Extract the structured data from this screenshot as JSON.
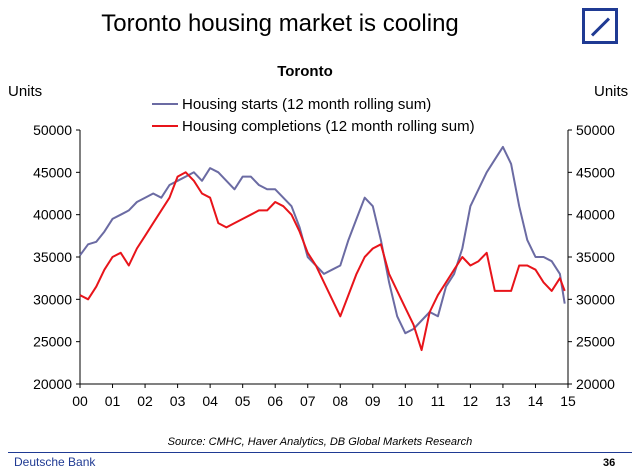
{
  "slide": {
    "title": "Toronto housing market is cooling",
    "source": "Source: CMHC, Haver Analytics, DB Global Markets Research",
    "footer_brand": "Deutsche Bank",
    "page_number": "36",
    "logo_icon": "deutsche-bank-logo",
    "brand_color": "#1f3a93"
  },
  "chart_data": {
    "type": "line",
    "title": "Toronto",
    "ylabel_left": "Units",
    "ylabel_right": "Units",
    "ylim": [
      20000,
      50000
    ],
    "yticks": [
      20000,
      25000,
      30000,
      35000,
      40000,
      45000,
      50000
    ],
    "xlim": [
      2000,
      2015
    ],
    "xtick_labels": [
      "00",
      "01",
      "02",
      "03",
      "04",
      "05",
      "06",
      "07",
      "08",
      "09",
      "10",
      "11",
      "12",
      "13",
      "14",
      "15"
    ],
    "legend_position": "top-center",
    "grid": false,
    "series": [
      {
        "name": "Housing starts (12 month rolling sum)",
        "color": "#6b6ba3",
        "x": [
          2000.0,
          2000.25,
          2000.5,
          2000.75,
          2001.0,
          2001.25,
          2001.5,
          2001.75,
          2002.0,
          2002.25,
          2002.5,
          2002.75,
          2003.0,
          2003.25,
          2003.5,
          2003.75,
          2004.0,
          2004.25,
          2004.5,
          2004.75,
          2005.0,
          2005.25,
          2005.5,
          2005.75,
          2006.0,
          2006.25,
          2006.5,
          2006.75,
          2007.0,
          2007.25,
          2007.5,
          2007.75,
          2008.0,
          2008.25,
          2008.5,
          2008.75,
          2009.0,
          2009.25,
          2009.5,
          2009.75,
          2010.0,
          2010.25,
          2010.5,
          2010.75,
          2011.0,
          2011.25,
          2011.5,
          2011.75,
          2012.0,
          2012.25,
          2012.5,
          2012.75,
          2013.0,
          2013.25,
          2013.5,
          2013.75,
          2014.0,
          2014.25,
          2014.5,
          2014.75,
          2014.9
        ],
        "values": [
          35200,
          36500,
          36800,
          38000,
          39500,
          40000,
          40500,
          41500,
          42000,
          42500,
          42000,
          43500,
          44000,
          44500,
          45000,
          44000,
          45500,
          45000,
          44000,
          43000,
          44500,
          44500,
          43500,
          43000,
          43000,
          42000,
          41000,
          38500,
          35000,
          34000,
          33000,
          33500,
          34000,
          37000,
          39500,
          42000,
          41000,
          37000,
          32000,
          28000,
          26000,
          26500,
          27500,
          28500,
          28000,
          31500,
          33000,
          36000,
          41000,
          43000,
          45000,
          46500,
          48000,
          46000,
          41000,
          37000,
          35000,
          35000,
          34500,
          33000,
          29500
        ]
      },
      {
        "name": "Housing completions (12 month rolling sum)",
        "color": "#e8141a",
        "x": [
          2000.0,
          2000.25,
          2000.5,
          2000.75,
          2001.0,
          2001.25,
          2001.5,
          2001.75,
          2002.0,
          2002.25,
          2002.5,
          2002.75,
          2003.0,
          2003.25,
          2003.5,
          2003.75,
          2004.0,
          2004.25,
          2004.5,
          2004.75,
          2005.0,
          2005.25,
          2005.5,
          2005.75,
          2006.0,
          2006.25,
          2006.5,
          2006.75,
          2007.0,
          2007.25,
          2007.5,
          2007.75,
          2008.0,
          2008.25,
          2008.5,
          2008.75,
          2009.0,
          2009.25,
          2009.5,
          2009.75,
          2010.0,
          2010.25,
          2010.5,
          2010.75,
          2011.0,
          2011.25,
          2011.5,
          2011.75,
          2012.0,
          2012.25,
          2012.5,
          2012.75,
          2013.0,
          2013.25,
          2013.5,
          2013.75,
          2014.0,
          2014.25,
          2014.5,
          2014.75,
          2014.9
        ],
        "values": [
          30500,
          30000,
          31500,
          33500,
          35000,
          35500,
          34000,
          36000,
          37500,
          39000,
          40500,
          42000,
          44500,
          45000,
          44000,
          42500,
          42000,
          39000,
          38500,
          39000,
          39500,
          40000,
          40500,
          40500,
          41500,
          41000,
          40000,
          38000,
          35500,
          34000,
          32000,
          30000,
          28000,
          30500,
          33000,
          35000,
          36000,
          36500,
          33000,
          31000,
          29000,
          27000,
          24000,
          28500,
          30500,
          32000,
          33500,
          35000,
          34000,
          34500,
          35500,
          31000,
          31000,
          31000,
          34000,
          34000,
          33500,
          32000,
          31000,
          32500,
          31000
        ]
      }
    ]
  }
}
